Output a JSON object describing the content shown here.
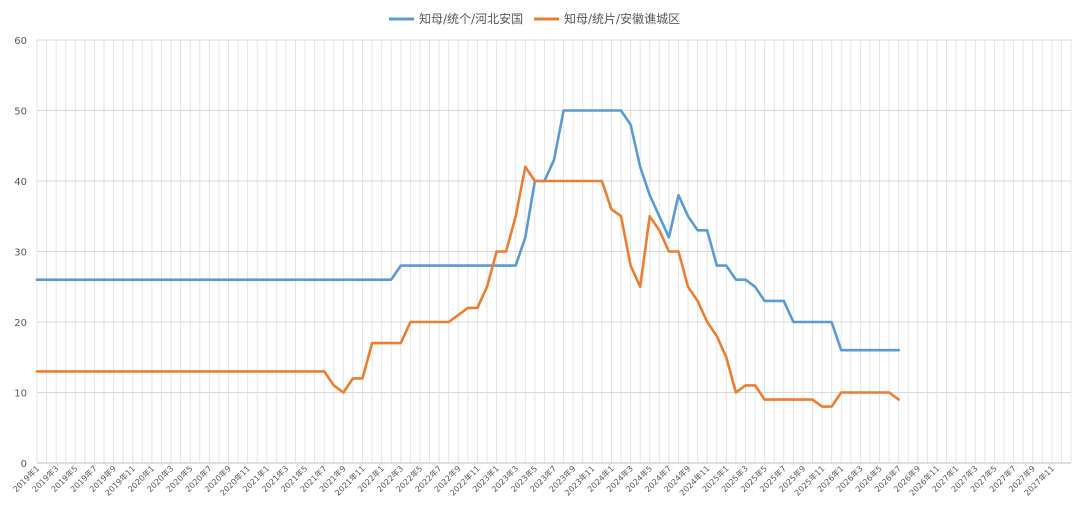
{
  "chart_data": {
    "type": "line",
    "x": [
      "2019年1",
      "2019年3",
      "2019年5",
      "2019年7",
      "2019年9",
      "2019年11",
      "2020年1",
      "2020年3",
      "2020年5",
      "2020年7",
      "2020年9",
      "2020年11",
      "2021年1",
      "2021年3",
      "2021年5",
      "2021年7",
      "2021年9",
      "2021年11",
      "2022年1",
      "2022年3",
      "2022年5",
      "2022年7",
      "2022年9",
      "2022年11",
      "2023年1",
      "2023年3",
      "2023年5",
      "2023年7",
      "2023年9",
      "2023年11",
      "2024年1",
      "2024年3",
      "2024年5",
      "2024年7",
      "2024年9",
      "2024年11",
      "2025年1",
      "2025年3",
      "2025年5",
      "2025年7",
      "2025年9",
      "2025年11",
      "2026年1",
      "2026年3",
      "2026年5",
      "2026年7",
      "2026年9",
      "2026年11",
      "2027年1",
      "2027年3",
      "2027年5",
      "2027年7",
      "2027年9",
      "2027年11"
    ],
    "x_month_index_start": "2019-01",
    "ylim": [
      0,
      60
    ],
    "yticks": [
      0,
      10,
      20,
      30,
      40,
      50,
      60
    ],
    "grid": true,
    "legend_position": "top",
    "series": [
      {
        "name": "知母/统个/河北安国",
        "color": "#5B9BD5",
        "points": [
          [
            0,
            26
          ],
          [
            12,
            26
          ],
          [
            24,
            26
          ],
          [
            36,
            26
          ],
          [
            37,
            26
          ],
          [
            38,
            28
          ],
          [
            40,
            28
          ],
          [
            48,
            28
          ],
          [
            50,
            28
          ],
          [
            51,
            32
          ],
          [
            52,
            40
          ],
          [
            53,
            40
          ],
          [
            54,
            43
          ],
          [
            55,
            50
          ],
          [
            56,
            50
          ],
          [
            60,
            50
          ],
          [
            61,
            50
          ],
          [
            62,
            48
          ],
          [
            63,
            42
          ],
          [
            64,
            38
          ],
          [
            65,
            35
          ],
          [
            66,
            32
          ],
          [
            67,
            38
          ],
          [
            68,
            35
          ],
          [
            69,
            33
          ],
          [
            70,
            33
          ],
          [
            71,
            28
          ],
          [
            72,
            28
          ],
          [
            73,
            26
          ],
          [
            74,
            26
          ],
          [
            75,
            25
          ],
          [
            76,
            23
          ],
          [
            77,
            23
          ],
          [
            78,
            23
          ],
          [
            79,
            20
          ],
          [
            80,
            20
          ],
          [
            81,
            20
          ],
          [
            82,
            20
          ],
          [
            83,
            20
          ],
          [
            84,
            16
          ],
          [
            85,
            16
          ],
          [
            86,
            16
          ],
          [
            87,
            16
          ],
          [
            88,
            16
          ],
          [
            89,
            16
          ],
          [
            90,
            16
          ]
        ]
      },
      {
        "name": "知母/统片/安徽谯城区",
        "color": "#ED7D31",
        "points": [
          [
            0,
            13
          ],
          [
            12,
            13
          ],
          [
            24,
            13
          ],
          [
            30,
            13
          ],
          [
            31,
            11
          ],
          [
            32,
            10
          ],
          [
            33,
            12
          ],
          [
            34,
            12
          ],
          [
            35,
            17
          ],
          [
            36,
            17
          ],
          [
            37,
            17
          ],
          [
            38,
            17
          ],
          [
            39,
            20
          ],
          [
            40,
            20
          ],
          [
            42,
            20
          ],
          [
            43,
            20
          ],
          [
            44,
            21
          ],
          [
            45,
            22
          ],
          [
            46,
            22
          ],
          [
            47,
            25
          ],
          [
            48,
            30
          ],
          [
            49,
            30
          ],
          [
            50,
            35
          ],
          [
            51,
            42
          ],
          [
            52,
            40
          ],
          [
            55,
            40
          ],
          [
            58,
            40
          ],
          [
            59,
            40
          ],
          [
            60,
            36
          ],
          [
            61,
            35
          ],
          [
            62,
            28
          ],
          [
            63,
            25
          ],
          [
            64,
            35
          ],
          [
            65,
            33
          ],
          [
            66,
            30
          ],
          [
            67,
            30
          ],
          [
            68,
            25
          ],
          [
            69,
            23
          ],
          [
            70,
            20
          ],
          [
            71,
            18
          ],
          [
            72,
            15
          ],
          [
            73,
            10
          ],
          [
            74,
            11
          ],
          [
            75,
            11
          ],
          [
            76,
            9
          ],
          [
            78,
            9
          ],
          [
            80,
            9
          ],
          [
            81,
            9
          ],
          [
            82,
            8
          ],
          [
            83,
            8
          ],
          [
            84,
            10
          ],
          [
            86,
            10
          ],
          [
            88,
            10
          ],
          [
            89,
            10
          ],
          [
            90,
            9
          ]
        ]
      }
    ]
  }
}
